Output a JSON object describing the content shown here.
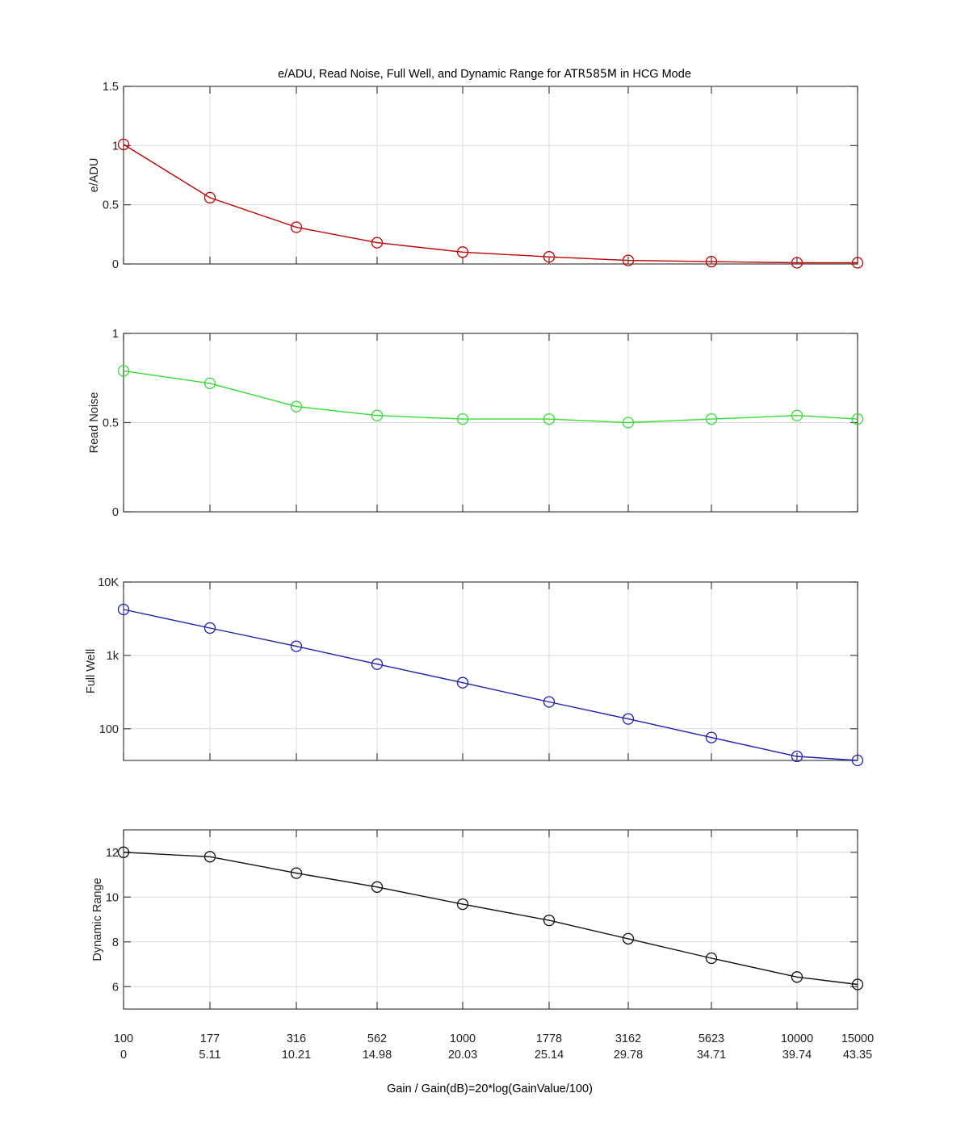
{
  "figure": {
    "title_prefix": "e/ADU, Read Noise, Full Well, and Dynamic Range for ",
    "title_model": "ATR585M",
    "title_suffix": " in HCG Mode",
    "xlabel": "Gain / Gain(dB)=20*log(GainValue/100)"
  },
  "chart_data": [
    {
      "type": "line",
      "title": "e/ADU, Read Noise, Full Well, and Dynamic Range for ATR585M in HCG Mode",
      "xlabel": "Gain / Gain(dB)=20*log(GainValue/100)",
      "ylabel": "e/ADU",
      "categories": [
        "100",
        "177",
        "316",
        "562",
        "1000",
        "1778",
        "3162",
        "5623",
        "10000",
        "15000"
      ],
      "categories_db": [
        "0",
        "5.11",
        "10.21",
        "14.98",
        "20.03",
        "25.14",
        "29.78",
        "34.71",
        "39.74",
        "43.35"
      ],
      "values": [
        1.01,
        0.56,
        0.31,
        0.18,
        0.1,
        0.06,
        0.03,
        0.02,
        0.01,
        0.01
      ],
      "ylim": [
        0,
        1.5
      ],
      "yticks": [
        0,
        0.5,
        1,
        1.5
      ],
      "ytick_labels": [
        "0",
        "0.5",
        "1",
        "1.5"
      ],
      "yscale": "linear",
      "color": "#c00000",
      "marker": "circle",
      "grid": true
    },
    {
      "type": "line",
      "ylabel": "Read Noise",
      "categories": [
        "100",
        "177",
        "316",
        "562",
        "1000",
        "1778",
        "3162",
        "5623",
        "10000",
        "15000"
      ],
      "values": [
        0.79,
        0.72,
        0.59,
        0.54,
        0.52,
        0.52,
        0.5,
        0.52,
        0.54,
        0.52
      ],
      "ylim": [
        0,
        1
      ],
      "yticks": [
        0,
        0.5,
        1
      ],
      "ytick_labels": [
        "0",
        "0.5",
        "1"
      ],
      "yscale": "linear",
      "color": "#33dd33",
      "marker": "circle",
      "grid": true
    },
    {
      "type": "line",
      "ylabel": "Full Well",
      "categories": [
        "100",
        "177",
        "316",
        "562",
        "1000",
        "1778",
        "3162",
        "5623",
        "10000",
        "15000"
      ],
      "values": [
        4230,
        2360,
        1330,
        760,
        425,
        232,
        136,
        76,
        42,
        37
      ],
      "ylim": [
        37,
        10000
      ],
      "yticks": [
        100,
        1000,
        10000
      ],
      "ytick_labels": [
        "100",
        "1k",
        "10K"
      ],
      "yscale": "log",
      "color": "#1f1fb0",
      "marker": "circle",
      "grid": true
    },
    {
      "type": "line",
      "ylabel": "Dynamic Range",
      "categories": [
        "100",
        "177",
        "316",
        "562",
        "1000",
        "1778",
        "3162",
        "5623",
        "10000",
        "15000"
      ],
      "values": [
        12.0,
        11.8,
        11.07,
        10.45,
        9.68,
        8.96,
        8.14,
        7.27,
        6.43,
        6.1
      ],
      "ylim": [
        5,
        13
      ],
      "yticks": [
        6,
        8,
        10,
        12
      ],
      "ytick_labels": [
        "6",
        "8",
        "10",
        "12"
      ],
      "yscale": "linear",
      "color": "#111111",
      "marker": "circle",
      "grid": true
    }
  ]
}
